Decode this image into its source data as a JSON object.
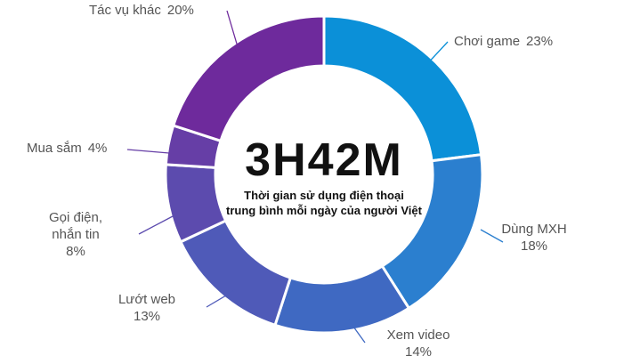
{
  "chart_data": {
    "type": "donut",
    "center_title": "3H42M",
    "center_subtitle_lines": [
      "Thời gian sử dụng điện thoại",
      "trung bình mỗi ngày của người Việt"
    ],
    "categories": [
      "Chơi game",
      "Dùng MXH",
      "Xem video",
      "Lướt web",
      "Gọi điện, nhắn tin",
      "Mua sắm",
      "Tác vụ khác"
    ],
    "values": [
      23,
      18,
      14,
      13,
      8,
      4,
      20
    ],
    "value_labels": [
      "23%",
      "18%",
      "14%",
      "13%",
      "8%",
      "4%",
      "20%"
    ],
    "colors": [
      "#0b90d8",
      "#2b7fcf",
      "#3f69c2",
      "#4f5ab8",
      "#5c4bae",
      "#663ea6",
      "#6e2a9c"
    ]
  }
}
